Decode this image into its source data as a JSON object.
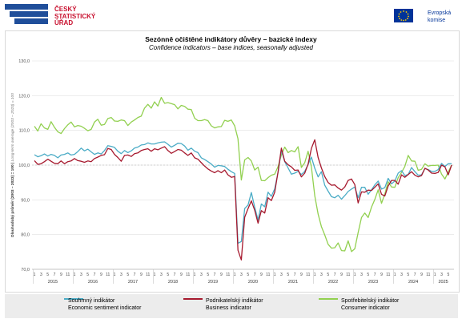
{
  "header": {
    "logo_lines": [
      "ČESKÝ",
      "STATISTICKÝ",
      "ÚŘAD"
    ],
    "eu_lines": [
      "Evropská",
      "komise"
    ]
  },
  "chart_data": {
    "type": "line",
    "title": "Sezónně očištěné indikátory důvěry – bazické indexy",
    "subtitle": "Confidence indicators – base indices, seasonally adjusted",
    "ylabel": "Dlouhodobý průměr (2003 – 2023) = 100",
    "ylabel_en": "Long-term average (2003 – 2023) = 100",
    "ylim": [
      70,
      130
    ],
    "yticks": [
      "70,0",
      "80,0",
      "90,0",
      "100,0",
      "110,0",
      "120,0",
      "130,0"
    ],
    "years": [
      "2015",
      "2016",
      "2017",
      "2018",
      "2019",
      "2020",
      "2021",
      "2022",
      "2023",
      "2024",
      "2025"
    ],
    "months_per_point": "1 … 6/2025",
    "reference_line": 100,
    "grid": "horizontal",
    "legend_position": "bottom",
    "series": [
      {
        "name": "Souhrnný indikátor",
        "name_en": "Economic sentiment indicator",
        "color": "#4bacc6",
        "values": [
          103.0,
          102.4,
          102.7,
          103.2,
          102.6,
          103.1,
          102.8,
          102.1,
          102.9,
          103.1,
          103.5,
          102.9,
          103.1,
          103.9,
          104.9,
          104.1,
          104.6,
          103.8,
          103.1,
          103.5,
          103.2,
          104.2,
          105.6,
          105.4,
          105.1,
          104.0,
          103.3,
          104.2,
          103.6,
          104.1,
          104.9,
          105.2,
          105.8,
          105.9,
          106.4,
          106.1,
          106.1,
          106.4,
          106.6,
          106.7,
          106.0,
          105.2,
          105.7,
          106.3,
          106.2,
          105.5,
          104.3,
          104.9,
          104.0,
          103.6,
          102.1,
          101.6,
          101.0,
          100.3,
          99.4,
          99.9,
          99.8,
          99.6,
          98.8,
          98.1,
          97.6,
          77.5,
          78.0,
          87.5,
          88.5,
          92.1,
          87.9,
          84.2,
          88.8,
          88.0,
          92.2,
          91.0,
          93.2,
          97.9,
          104.3,
          101.0,
          99.2,
          97.4,
          97.7,
          98.2,
          97.3,
          98.2,
          100.2,
          102.3,
          99.1,
          96.6,
          98.1,
          94.2,
          92.5,
          90.9,
          90.6,
          91.3,
          90.2,
          91.2,
          92.4,
          93.1,
          93.7,
          90.6,
          93.6,
          93.6,
          91.6,
          92.9,
          94.3,
          95.4,
          93.1,
          93.5,
          96.2,
          94.6,
          95.4,
          97.7,
          98.4,
          97.0,
          97.3,
          99.3,
          98.1,
          97.1,
          97.2,
          99.0,
          98.7,
          98.2,
          98.2,
          98.7,
          100.5,
          99.6,
          100.4,
          100.4
        ]
      },
      {
        "name": "Podnikatelský indikátor",
        "name_en": "Business indicator",
        "color": "#a6192e",
        "values": [
          101.3,
          100.2,
          100.4,
          101.0,
          101.7,
          101.1,
          100.5,
          100.4,
          101.2,
          100.4,
          101.0,
          101.2,
          101.9,
          101.3,
          101.1,
          100.8,
          101.2,
          101.0,
          101.9,
          102.3,
          102.8,
          103.0,
          104.8,
          104.5,
          103.1,
          102.2,
          101.1,
          102.8,
          102.9,
          102.5,
          103.3,
          103.5,
          104.2,
          104.5,
          104.7,
          104.0,
          104.7,
          104.4,
          104.9,
          105.3,
          104.2,
          103.4,
          103.9,
          104.5,
          104.3,
          103.5,
          102.8,
          103.5,
          102.1,
          101.7,
          100.7,
          99.7,
          98.9,
          98.3,
          97.8,
          98.4,
          97.8,
          98.6,
          97.2,
          96.5,
          96.7,
          75.5,
          72.7,
          85.0,
          87.5,
          89.7,
          87.0,
          83.3,
          86.9,
          86.2,
          90.6,
          89.8,
          92.2,
          98.1,
          104.9,
          101.1,
          100.1,
          99.5,
          98.5,
          98.6,
          96.6,
          97.7,
          100.3,
          104.8,
          107.3,
          102.2,
          99.2,
          96.7,
          95.0,
          94.2,
          94.3,
          93.4,
          92.8,
          93.7,
          95.6,
          96.0,
          94.4,
          89.1,
          92.3,
          92.2,
          92.8,
          92.7,
          93.6,
          94.6,
          91.6,
          91.1,
          94.0,
          95.6,
          95.6,
          94.5,
          97.2,
          96.5,
          97.3,
          98.1,
          97.1,
          96.6,
          97.0,
          99.1,
          98.6,
          97.7,
          97.6,
          97.9,
          100.0,
          99.5,
          97.2,
          100.0
        ]
      },
      {
        "name": "Spotřebitelský indikátor",
        "name_en": "Consumer indicator",
        "color": "#92d050",
        "values": [
          111.2,
          109.8,
          111.9,
          110.7,
          110.3,
          112.5,
          110.9,
          109.6,
          109.1,
          110.5,
          111.6,
          112.4,
          111.0,
          111.4,
          111.2,
          110.6,
          109.9,
          110.3,
          112.4,
          113.2,
          111.5,
          111.7,
          113.4,
          113.7,
          112.7,
          112.6,
          113.0,
          112.8,
          111.4,
          112.4,
          113.0,
          113.7,
          114.1,
          116.4,
          117.5,
          116.4,
          118.2,
          117.0,
          119.5,
          117.8,
          118.0,
          117.7,
          117.4,
          116.2,
          117.2,
          116.9,
          116.1,
          116.0,
          113.5,
          112.8,
          112.8,
          113.1,
          112.8,
          111.3,
          110.7,
          111.0,
          111.1,
          112.9,
          112.6,
          113.0,
          111.3,
          107.6,
          95.7,
          101.5,
          102.2,
          101.2,
          98.6,
          99.4,
          95.6,
          95.5,
          96.4,
          97.1,
          97.4,
          99.6,
          102.9,
          105.2,
          103.6,
          104.2,
          103.8,
          105.3,
          99.3,
          100.7,
          104.0,
          99.5,
          91.2,
          85.9,
          82.3,
          79.9,
          77.2,
          76.1,
          76.2,
          77.6,
          75.4,
          75.3,
          78.2,
          75.1,
          75.9,
          80.6,
          84.9,
          86.2,
          84.9,
          87.9,
          90.1,
          92.9,
          89.0,
          91.7,
          95.2,
          93.7,
          93.6,
          96.4,
          97.9,
          99.6,
          102.8,
          101.2,
          101.1,
          98.5,
          98.8,
          100.4,
          99.7,
          99.9,
          99.9,
          100.0,
          97.4,
          96.0,
          98.0,
          100.0
        ]
      }
    ]
  }
}
